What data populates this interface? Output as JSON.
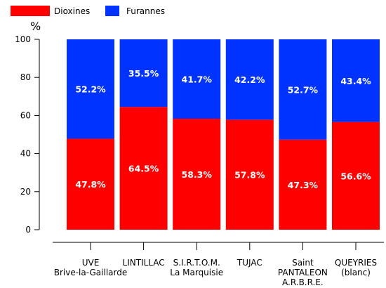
{
  "chart_data": {
    "type": "bar",
    "stacked": true,
    "ylabel": "%",
    "ylim": [
      0,
      100
    ],
    "yticks": [
      0,
      20,
      40,
      60,
      80,
      100
    ],
    "legend_position": "top-left",
    "categories": [
      [
        "UVE",
        "Brive-la-Gaillarde"
      ],
      [
        "LINTILLAC"
      ],
      [
        "S.I.R.T.O.M.",
        "La Marquisie"
      ],
      [
        "TUJAC"
      ],
      [
        "Saint",
        "PANTALEON",
        "A.R.B.R.E."
      ],
      [
        "QUEYRIES",
        "(blanc)"
      ]
    ],
    "series": [
      {
        "name": "Dioxines",
        "color": "#ff0000",
        "values": [
          47.8,
          64.5,
          58.3,
          57.8,
          47.3,
          56.6
        ],
        "labels": [
          "47.8%",
          "64.5%",
          "58.3%",
          "57.8%",
          "47.3%",
          "56.6%"
        ]
      },
      {
        "name": "Furannes",
        "color": "#0033ff",
        "values": [
          52.2,
          35.5,
          41.7,
          42.2,
          52.7,
          43.4
        ],
        "labels": [
          "52.2%",
          "35.5%",
          "41.7%",
          "42.2%",
          "52.7%",
          "43.4%"
        ]
      }
    ]
  }
}
